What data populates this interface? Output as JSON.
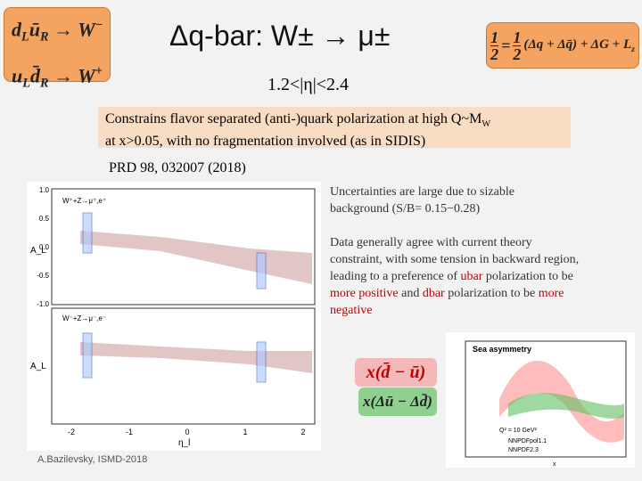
{
  "header": {
    "title": "Δq-bar: W± → μ±",
    "subtitle": "1.2<|η|<2.4",
    "left_formula": {
      "row1": [
        "d",
        "L",
        "ū",
        "R",
        "→ W",
        "−"
      ],
      "row2": [
        "u",
        "L",
        "d̄",
        "R",
        "→ W",
        "+"
      ]
    },
    "right_formula": [
      "1",
      "2",
      "=",
      "1",
      "2",
      "(Δq + Δq̄) + ΔG + L",
      "z"
    ]
  },
  "highlight": {
    "line1": [
      "Constrains flavor separated (anti-)quark polarization at high Q~M",
      "W"
    ],
    "line2": "at x>0.05, with no fragmentation involved (as in SIDIS)"
  },
  "reference": "PRD 98, 032007 (2018)",
  "notes": {
    "note1": "Uncertainties are large due to sizable background (S/B= 0.15−0.28)",
    "note2": [
      "Data generally agree with current theory constraint, with some tension in backward region, leading to a preference of ",
      "ubar",
      " polarization to be ",
      "more positive",
      " and ",
      "dbar",
      " polarization to be ",
      "more negative"
    ]
  },
  "boxes": {
    "pink": "x(d̄ − ū)",
    "green": "x(Δū − Δd̄)"
  },
  "left_plot": {
    "y_label": "A_L",
    "x_label": "η_l",
    "top_label": "W⁺+Z→μ⁺,e⁺",
    "bottom_label": "W⁻+Z→μ⁻,e⁻",
    "yticks": [
      "1.0",
      "0.5",
      "0.0",
      "-0.5",
      "-1.0"
    ],
    "xticks": [
      "-2",
      "-1",
      "0",
      "1",
      "2"
    ]
  },
  "right_plot": {
    "title": "Sea asymmetry",
    "scale": "Q² = 10 GeV²",
    "legend": [
      "NNPDFpol1.1",
      "NNPDF2.3"
    ],
    "x_label": "x"
  },
  "footer": "A.Bazilevsky, ISMD-2018"
}
